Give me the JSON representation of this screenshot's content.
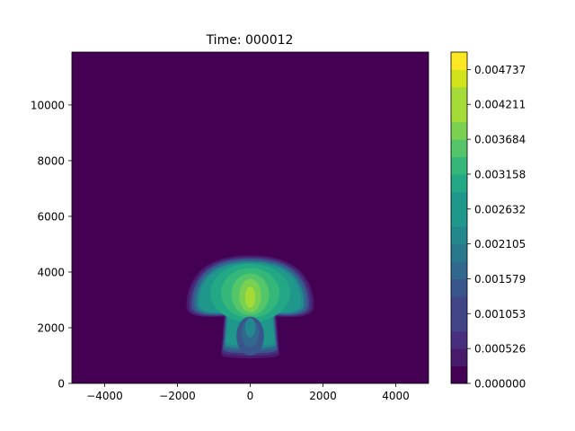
{
  "chart_data": {
    "type": "contour",
    "title": "Time: 000012",
    "xlabel": "",
    "ylabel": "",
    "xlim": [
      -4900,
      4900
    ],
    "ylim": [
      0,
      11900
    ],
    "x_ticks": [
      -4000,
      -2000,
      0,
      2000,
      4000
    ],
    "x_tick_labels": [
      "−4000",
      "−2000",
      "0",
      "2000",
      "4000"
    ],
    "y_ticks": [
      0,
      2000,
      4000,
      6000,
      8000,
      10000
    ],
    "y_tick_labels": [
      "0",
      "2000",
      "4000",
      "6000",
      "8000",
      "10000"
    ],
    "colorbar": {
      "min": 0.0,
      "max": 0.005,
      "levels": 19,
      "colormap": "viridis",
      "tick_values": [
        0.0,
        0.000526,
        0.001053,
        0.001579,
        0.002105,
        0.002632,
        0.003158,
        0.003684,
        0.004211,
        0.004737
      ],
      "tick_labels": [
        "0.000000",
        "0.000526",
        "0.001053",
        "0.001579",
        "0.002105",
        "0.002632",
        "0.003158",
        "0.003684",
        "0.004211",
        "0.004737"
      ]
    },
    "plume": {
      "description": "mushroom-shaped thermal centred at x=0",
      "peak_value": 0.0045,
      "peak_location": [
        0,
        3200
      ],
      "extent_x": [
        -1750,
        1750
      ],
      "extent_y": [
        900,
        4600
      ]
    },
    "background_value": 0.0
  },
  "colors": {
    "viridis": [
      "#440154",
      "#481a6c",
      "#472f7d",
      "#414487",
      "#39568c",
      "#31688e",
      "#2a788e",
      "#23888e",
      "#1f988b",
      "#22a884",
      "#35b779",
      "#54c568",
      "#7ad151",
      "#a5db36",
      "#d2e21b",
      "#fde725"
    ]
  }
}
